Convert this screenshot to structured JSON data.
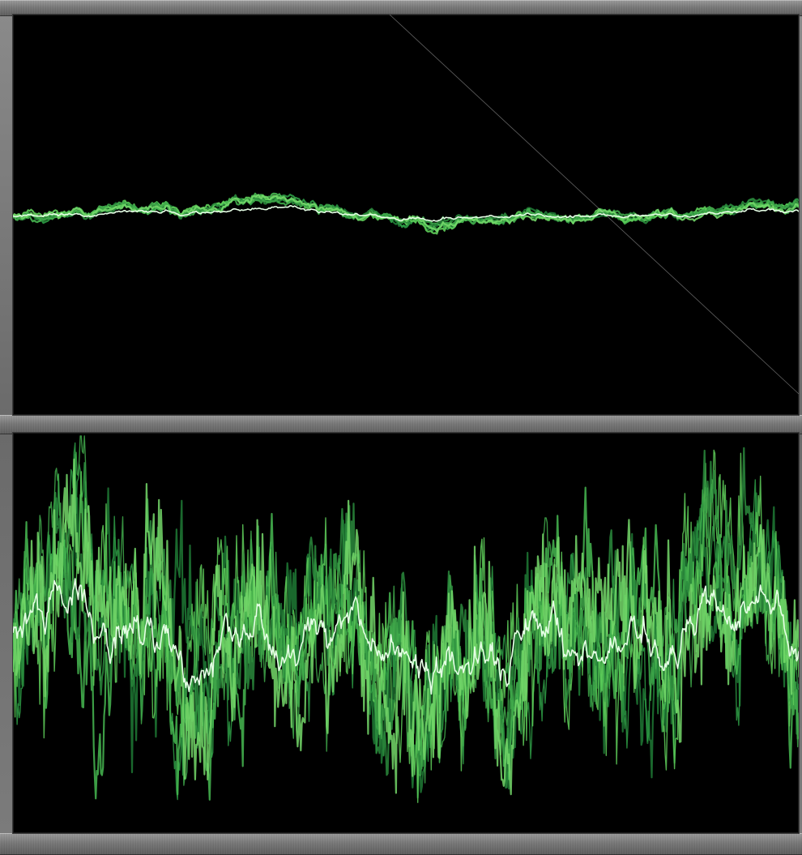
{
  "colors": {
    "bezel": "#7a7a7a",
    "screen_background": "#000000",
    "trace_greens": [
      "#1f7a35",
      "#2e9c45",
      "#47b851",
      "#5fcf5a",
      "#2a8a3c",
      "#3fa84a",
      "#74d86a"
    ],
    "trace_highlight": "#e6ffe6"
  },
  "panels": [
    {
      "name": "top-scope",
      "amplitude": "low",
      "trace_count": 7
    },
    {
      "name": "bottom-scope",
      "amplitude": "high",
      "trace_count": 7
    }
  ]
}
